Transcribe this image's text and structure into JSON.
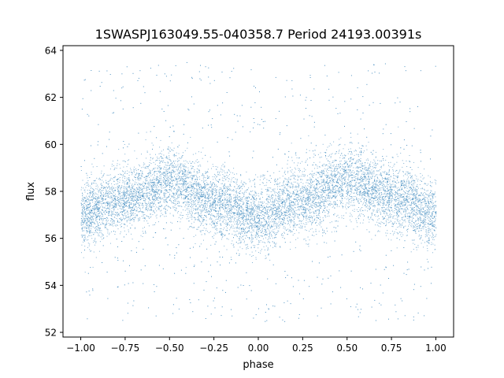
{
  "chart_data": {
    "type": "scatter",
    "title": "1SWASPJ163049.55-040358.7 Period 24193.00391s",
    "xlabel": "phase",
    "ylabel": "flux",
    "xlim": [
      -1.1,
      1.1
    ],
    "ylim": [
      51.8,
      64.2
    ],
    "xticks": [
      -1.0,
      -0.75,
      -0.5,
      -0.25,
      0.0,
      0.25,
      0.5,
      0.75,
      1.0
    ],
    "xtick_labels": [
      "−1.00",
      "−0.75",
      "−0.50",
      "−0.25",
      "0.00",
      "0.25",
      "0.50",
      "0.75",
      "1.00"
    ],
    "yticks": [
      52,
      54,
      56,
      58,
      60,
      62,
      64
    ],
    "ytick_labels": [
      "52",
      "54",
      "56",
      "58",
      "60",
      "62",
      "64"
    ],
    "grid": false,
    "legend": "none",
    "marker_color": "#1f77b4",
    "x_range_of_points": [
      -1.0,
      1.0
    ],
    "trend_points": [
      {
        "x": -1.0,
        "y": 57.0
      },
      {
        "x": -0.75,
        "y": 57.7
      },
      {
        "x": -0.5,
        "y": 58.4
      },
      {
        "x": -0.25,
        "y": 57.5
      },
      {
        "x": 0.0,
        "y": 56.9
      },
      {
        "x": 0.25,
        "y": 57.7
      },
      {
        "x": 0.5,
        "y": 58.5
      },
      {
        "x": 0.75,
        "y": 57.8
      },
      {
        "x": 1.0,
        "y": 57.0
      }
    ],
    "band_spread": 0.7,
    "outlier_range": [
      52.4,
      63.5
    ]
  }
}
